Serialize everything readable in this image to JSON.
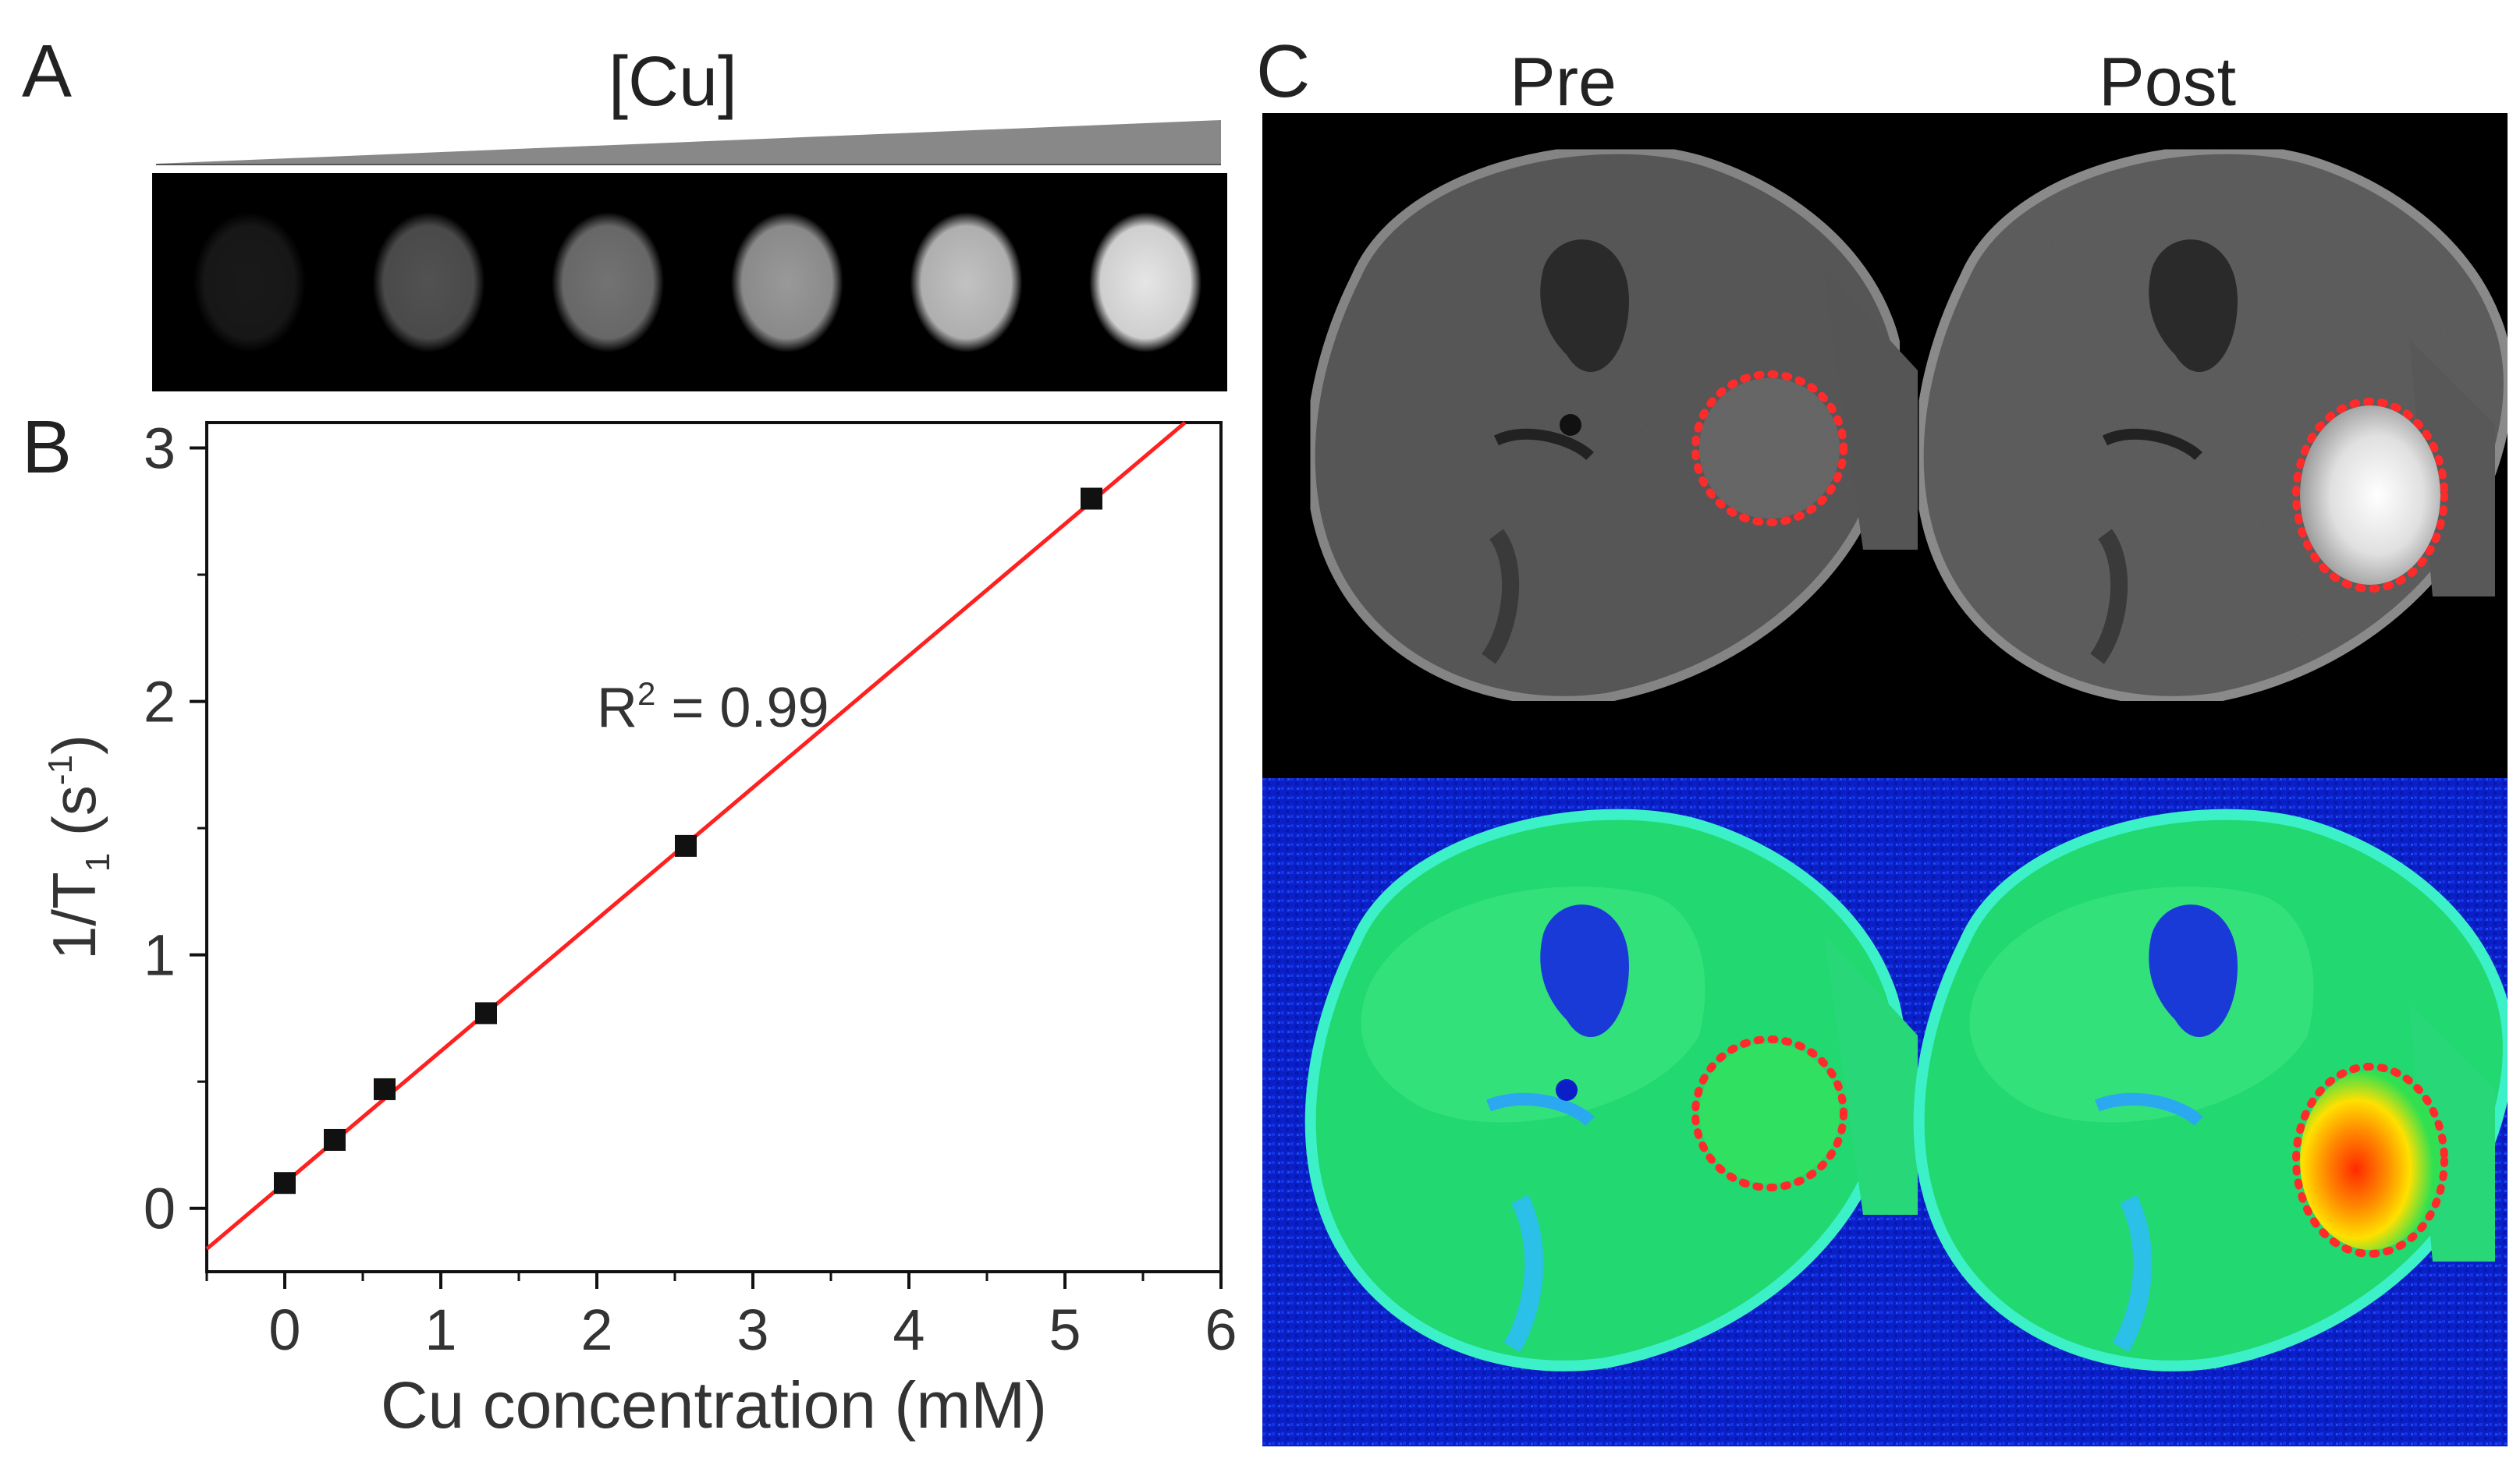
{
  "panels": {
    "a": {
      "letter": "A",
      "gradient_label": "[Cu]",
      "phantom_brightness": [
        0.1,
        0.32,
        0.45,
        0.6,
        0.76,
        0.9
      ]
    },
    "b": {
      "letter": "B"
    },
    "c": {
      "letter": "C",
      "col_pre": "Pre",
      "col_post": "Post"
    }
  },
  "chart_data": {
    "type": "scatter",
    "xlabel": "Cu concentration (mM)",
    "ylabel": "1/T",
    "ylabel_sub": "1",
    "ylabel_unit": "(s",
    "ylabel_sup": "-1",
    "ylabel_close": ")",
    "xlim": [
      -0.5,
      6
    ],
    "ylim": [
      -0.25,
      3.1
    ],
    "xticks": [
      0,
      1,
      2,
      3,
      4,
      5,
      6
    ],
    "yticks": [
      0,
      1,
      2,
      3
    ],
    "annotation": {
      "text_main": "R",
      "text_sup": "2",
      "text_rest": " = 0.99"
    },
    "series": [
      {
        "points": [
          {
            "x": 0,
            "y": 0.1
          },
          {
            "x": 0.32,
            "y": 0.27
          },
          {
            "x": 0.64,
            "y": 0.47
          },
          {
            "x": 1.29,
            "y": 0.77
          },
          {
            "x": 2.57,
            "y": 1.43
          },
          {
            "x": 5.17,
            "y": 2.8
          }
        ]
      }
    ],
    "fit": {
      "slope": 0.52,
      "intercept": 0.1,
      "color": "#ff2020"
    },
    "marker_color": "#111111"
  }
}
